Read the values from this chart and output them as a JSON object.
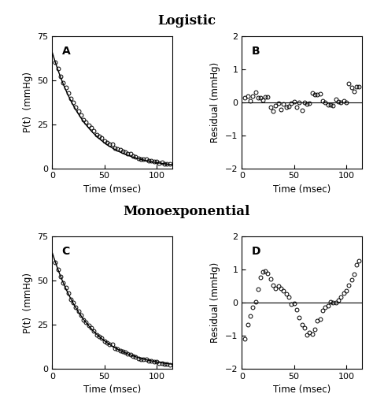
{
  "title_logistic": "Logistic",
  "title_monoexp": "Monoexponential",
  "label_A": "A",
  "label_B": "B",
  "label_C": "C",
  "label_D": "D",
  "xlabel": "Time (msec)",
  "ylabel_pressure": "P(t)  (mmHg)",
  "ylabel_residual": "Residual (mmHg)",
  "xlim": [
    0,
    115
  ],
  "ylim_pressure": [
    0,
    75
  ],
  "ylim_residual": [
    -2,
    2
  ],
  "yticks_pressure": [
    0,
    25,
    50,
    75
  ],
  "yticks_residual": [
    -2,
    -1,
    0,
    1,
    2
  ],
  "xticks": [
    0,
    50,
    100
  ],
  "background_color": "#ffffff",
  "line_color": "#000000",
  "marker_color": "#000000",
  "marker_style": "o",
  "marker_size": 3.5,
  "marker_facecolor": "none",
  "title_fontsize": 12,
  "label_fontsize": 8.5,
  "tick_fontsize": 8,
  "panel_label_fontsize": 10,
  "monoexp_tau": 35.0,
  "monoexp_P0": 66.0,
  "monoexp_Pinf": 0.0
}
